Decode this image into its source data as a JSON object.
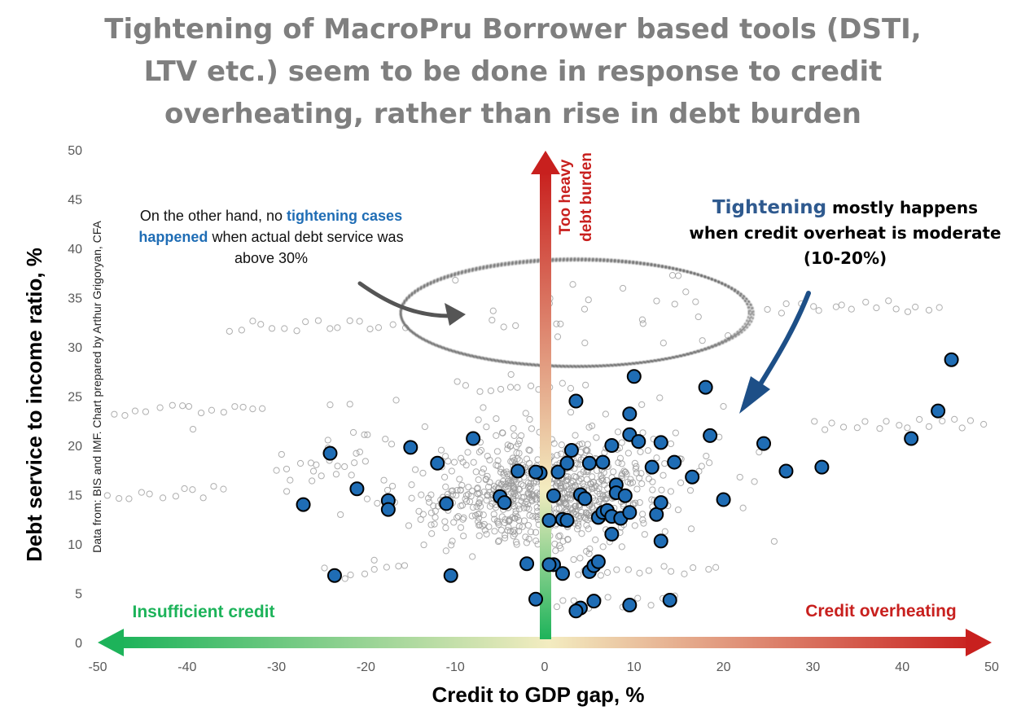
{
  "title_lines": [
    "Tightening of MacroPru Borrower based tools (DSTI,",
    "LTV etc.) seem to be done in response to credit",
    "overheating, rather than rise in debt burden"
  ],
  "annotations": {
    "left_pre": "On the other hand, no ",
    "left_hl": "tightening cases happened",
    "left_post": " when actual debt service was above 30%",
    "right_hl": "Tightening",
    "right_rest": " mostly happens when credit overheat is moderate (10-20%)",
    "up_arrow_line1": "Too heavy",
    "up_arrow_line2": "debt burden",
    "left_arrow": "Insufficient credit",
    "right_arrow": "Credit overheating",
    "source": "Data from: BIS and IMF. Chart prepared by Arthur Grigoryan, CFA"
  },
  "colors": {
    "tightening_fill": "#1f6db5",
    "background_points": "#9a9a9a",
    "title": "#7f7f7f",
    "green_arrow": "#1db35a",
    "red_arrow": "#c8201e",
    "accent_blue": "#2f5a8f"
  },
  "chart_data": {
    "type": "scatter",
    "title": "Tightening of MacroPru Borrower based tools (DSTI, LTV etc.) seem to be done in response to credit overheating, rather than rise in debt burden",
    "xlabel": "Credit to GDP gap, %",
    "ylabel": "Debt service to income ratio, %",
    "xlim": [
      -50,
      50
    ],
    "ylim": [
      0,
      50
    ],
    "x_ticks": [
      -50,
      -40,
      -30,
      -20,
      -10,
      0,
      10,
      20,
      30,
      40,
      50
    ],
    "y_ticks": [
      0,
      5,
      10,
      15,
      20,
      25,
      30,
      35,
      40,
      45,
      50
    ],
    "grid": false,
    "series": [
      {
        "name": "",
        "x": [
          -27.0,
          -23.5,
          -21.0,
          -17.5,
          -17.5,
          -15.0,
          -12.0,
          -11.0,
          -10.5,
          -8.0,
          -5.0,
          -4.5,
          -3.0,
          -2.0,
          -1.0,
          -0.5,
          0.5,
          1.0,
          1.0,
          1.5,
          2.0,
          2.0,
          2.5,
          3.0,
          3.5,
          4.0,
          4.0,
          4.5,
          5.0,
          5.0,
          5.5,
          6.0,
          6.0,
          6.5,
          6.5,
          7.0,
          7.5,
          7.5,
          7.5,
          8.0,
          8.0,
          8.5,
          9.0,
          9.5,
          9.5,
          9.5,
          10.0,
          10.5,
          12.0,
          12.5,
          13.0,
          13.0,
          13.0,
          14.5,
          16.5,
          18.0,
          18.5,
          20.0,
          24.5,
          27.0,
          31.0,
          41.0,
          44.0,
          45.5,
          -24.0,
          3.5,
          5.5,
          9.5,
          -1.0,
          0.5,
          2.5,
          14.0
        ],
        "y": [
          14.0,
          6.8,
          15.6,
          14.4,
          13.5,
          19.8,
          18.2,
          14.1,
          6.8,
          20.7,
          14.8,
          14.2,
          17.4,
          8.0,
          4.4,
          17.2,
          12.4,
          7.9,
          14.9,
          17.3,
          7.0,
          12.5,
          18.2,
          19.5,
          24.5,
          15.0,
          3.5,
          14.6,
          7.2,
          18.2,
          7.8,
          8.2,
          12.7,
          13.2,
          18.3,
          13.4,
          11.0,
          20.0,
          12.8,
          16.0,
          15.2,
          12.6,
          14.9,
          3.8,
          23.2,
          21.1,
          27.0,
          20.4,
          17.8,
          13.0,
          14.2,
          10.3,
          20.3,
          18.3,
          16.8,
          25.9,
          21.0,
          14.5,
          20.2,
          17.4,
          17.8,
          20.7,
          23.5,
          28.7,
          19.2,
          3.2,
          4.2,
          13.2,
          17.3,
          7.9,
          12.4,
          4.3
        ]
      }
    ],
    "ellipse_highlight": {
      "cx": 3.5,
      "cy": 33.5,
      "rx": 19.5,
      "ry": 5.5
    }
  }
}
